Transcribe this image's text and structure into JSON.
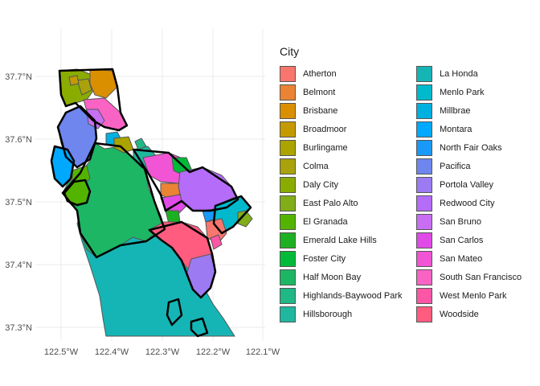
{
  "map": {
    "x_ticks": [
      "122.5°W",
      "122.4°W",
      "122.3°W",
      "122.2°W",
      "122.1°W"
    ],
    "y_ticks": [
      "37.7°N",
      "37.6°N",
      "37.5°N",
      "37.4°N",
      "37.3°N"
    ],
    "grid": true,
    "background": "#ffffff",
    "gridline_color": "#ebebeb",
    "border_color": "#000000",
    "unincorporated_outline": "#555555"
  },
  "legend": {
    "title": "City",
    "placement": "right",
    "columns": 2,
    "items": [
      {
        "label": "Atherton",
        "color": "#F8766D"
      },
      {
        "label": "Belmont",
        "color": "#EB8335"
      },
      {
        "label": "Brisbane",
        "color": "#DA8F00"
      },
      {
        "label": "Broadmoor",
        "color": "#C49A00"
      },
      {
        "label": "Burlingame",
        "color": "#AAA300"
      },
      {
        "label": "Colma",
        "color": "#A9A20B"
      },
      {
        "label": "Daly City",
        "color": "#8AAB00"
      },
      {
        "label": "East Palo Alto",
        "color": "#80AD18"
      },
      {
        "label": "El Granada",
        "color": "#53B400"
      },
      {
        "label": "Emerald Lake Hills",
        "color": "#1EB023"
      },
      {
        "label": "Foster City",
        "color": "#00BA38"
      },
      {
        "label": "Half Moon Bay",
        "color": "#1DB664"
      },
      {
        "label": "Highlands-Baywood Park",
        "color": "#20B887"
      },
      {
        "label": "Hillsborough",
        "color": "#20B79F"
      },
      {
        "label": "La Honda",
        "color": "#16B5B5"
      },
      {
        "label": "Menlo Park",
        "color": "#00B9CC"
      },
      {
        "label": "Millbrae",
        "color": "#00B0E0"
      },
      {
        "label": "Montara",
        "color": "#00A9FF"
      },
      {
        "label": "North Fair Oaks",
        "color": "#1999F8"
      },
      {
        "label": "Pacifica",
        "color": "#6E86EE"
      },
      {
        "label": "Portola Valley",
        "color": "#9C7BF2"
      },
      {
        "label": "Redwood City",
        "color": "#B46CF9"
      },
      {
        "label": "San Bruno",
        "color": "#C86EF3"
      },
      {
        "label": "San Carlos",
        "color": "#E04AE6"
      },
      {
        "label": "San Mateo",
        "color": "#F154D4"
      },
      {
        "label": "South San Francisco",
        "color": "#F863C4"
      },
      {
        "label": "West Menlo Park",
        "color": "#FD56A6"
      },
      {
        "label": "Woodside",
        "color": "#FF5C7F"
      }
    ]
  }
}
